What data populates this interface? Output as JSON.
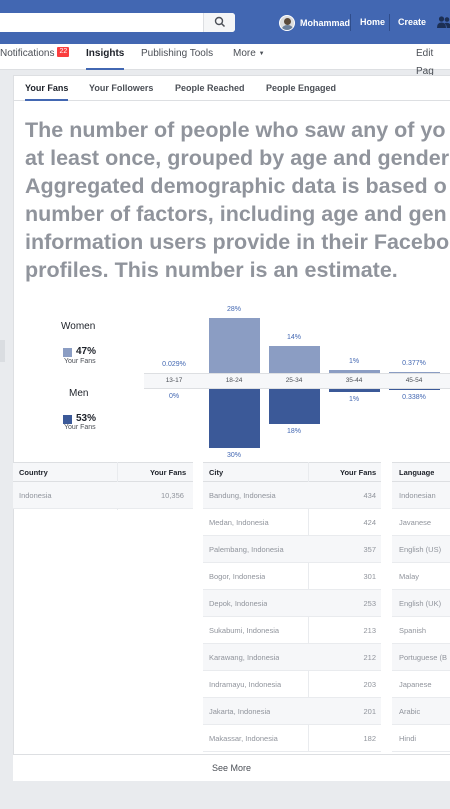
{
  "topbar": {
    "user_name": "Mohammad",
    "home_label": "Home",
    "create_label": "Create",
    "accent": "#4267b2"
  },
  "page_tabs": {
    "notifications_label": "Notifications",
    "notifications_count": "22",
    "insights_label": "Insights",
    "publishing_tools_label": "Publishing Tools",
    "more_label": "More",
    "edit_page_label": "Edit Pag"
  },
  "sub_tabs": {
    "your_fans": "Your Fans",
    "your_followers": "Your Followers",
    "people_reached": "People Reached",
    "people_engaged": "People Engaged"
  },
  "description": {
    "line1": "The number of people who saw any of yo",
    "line2": "at least once, grouped by age and gender",
    "line3": "Aggregated demographic data is based o",
    "line4": "number of factors, including age and gen",
    "line5": "information users provide in their Facebo",
    "line6": "profiles. This number is an estimate."
  },
  "chart_data": {
    "type": "bar",
    "categories": [
      "13-17",
      "18-24",
      "25-34",
      "35-44",
      "45-54"
    ],
    "series": [
      {
        "name": "Women",
        "values": [
          0.029,
          28,
          14,
          1,
          0.377
        ],
        "labels": [
          "0.029%",
          "28%",
          "14%",
          "1%",
          "0.377%"
        ],
        "total": "47%",
        "sub": "Your Fans",
        "color": "#8b9dc3"
      },
      {
        "name": "Men",
        "values": [
          0,
          30,
          18,
          1,
          0.338
        ],
        "labels": [
          "0%",
          "30%",
          "18%",
          "1%",
          "0.338%"
        ],
        "total": "53%",
        "sub": "Your Fans",
        "color": "#3b5998"
      }
    ],
    "ylim": [
      0,
      30
    ]
  },
  "country_table": {
    "headers": {
      "country": "Country",
      "fans": "Your Fans"
    },
    "rows": [
      {
        "name": "Indonesia",
        "fans": "10,356"
      }
    ]
  },
  "city_table": {
    "headers": {
      "city": "City",
      "fans": "Your Fans"
    },
    "rows": [
      {
        "name": "Bandung, Indonesia",
        "fans": "434"
      },
      {
        "name": "Medan, Indonesia",
        "fans": "424"
      },
      {
        "name": "Palembang, Indonesia",
        "fans": "357"
      },
      {
        "name": "Bogor, Indonesia",
        "fans": "301"
      },
      {
        "name": "Depok, Indonesia",
        "fans": "253"
      },
      {
        "name": "Sukabumi, Indonesia",
        "fans": "213"
      },
      {
        "name": "Karawang, Indonesia",
        "fans": "212"
      },
      {
        "name": "Indramayu, Indonesia",
        "fans": "203"
      },
      {
        "name": "Jakarta, Indonesia",
        "fans": "201"
      },
      {
        "name": "Makassar, Indonesia",
        "fans": "182"
      }
    ]
  },
  "language_table": {
    "headers": {
      "language": "Language"
    },
    "rows": [
      "Indonesian",
      "Javanese",
      "English (US)",
      "Malay",
      "English (UK)",
      "Spanish",
      "Portuguese (B",
      "Japanese",
      "Arabic",
      "Hindi"
    ]
  },
  "see_more_label": "See More"
}
